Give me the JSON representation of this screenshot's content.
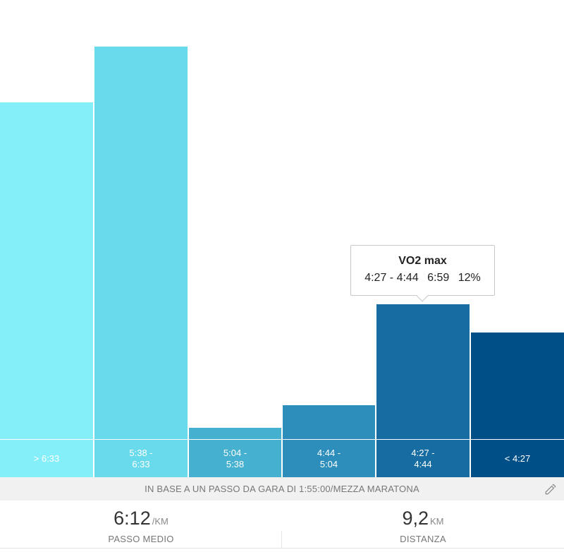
{
  "chart_data": {
    "type": "bar",
    "categories": [
      "> 6:33",
      "5:38 -\n6:33",
      "5:04 -\n5:38",
      "4:44 -\n5:04",
      "4:27 -\n4:44",
      "< 4:27"
    ],
    "values": [
      30,
      35,
      1,
      3,
      12,
      9.5
    ],
    "ylim": [
      0,
      37
    ],
    "colors": [
      "#84EEF9",
      "#69DAEB",
      "#46B0D1",
      "#2E8EBB",
      "#176CA2",
      "#004F86"
    ]
  },
  "tooltip": {
    "title": "VO2 max",
    "range": "4:27 - 4:44",
    "time": "6:59",
    "percent": "12%"
  },
  "basis_text": "IN BASE A UN PASSO DA GARA DI 1:55:00/MEZZA MARATONA",
  "edit_icon": "pencil-icon",
  "stats": {
    "pace": {
      "value": "6:12",
      "unit": "/KM",
      "label": "PASSO MEDIO"
    },
    "distance": {
      "value": "9,2",
      "unit": "KM",
      "label": "DISTANZA"
    }
  }
}
